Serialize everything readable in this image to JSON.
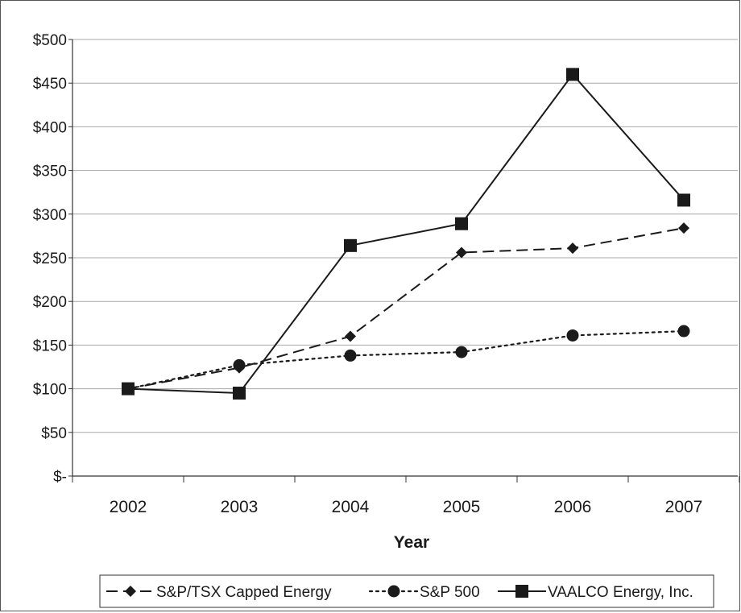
{
  "chart_data": {
    "type": "line",
    "title": "",
    "xlabel": "Year",
    "ylabel": "",
    "categories": [
      "2002",
      "2003",
      "2004",
      "2005",
      "2006",
      "2007"
    ],
    "ylim": [
      0,
      500
    ],
    "yticks": [
      0,
      50,
      100,
      150,
      200,
      250,
      300,
      350,
      400,
      450,
      500
    ],
    "ytick_labels": [
      "$-",
      "$50",
      "$100",
      "$150",
      "$200",
      "$250",
      "$300",
      "$350",
      "$400",
      "$450",
      "$500"
    ],
    "grid": "horizontal",
    "legend_position": "bottom",
    "series": [
      {
        "name": "S&P/TSX Capped Energy",
        "marker": "diamond",
        "line": "dashed",
        "values": [
          100,
          124,
          160,
          256,
          261,
          284
        ]
      },
      {
        "name": "S&P 500",
        "marker": "circle",
        "line": "dotted",
        "values": [
          100,
          127,
          138,
          142,
          161,
          166
        ]
      },
      {
        "name": "VAALCO Energy, Inc.",
        "marker": "square",
        "line": "solid",
        "values": [
          100,
          95,
          264,
          289,
          460,
          316
        ]
      }
    ]
  }
}
